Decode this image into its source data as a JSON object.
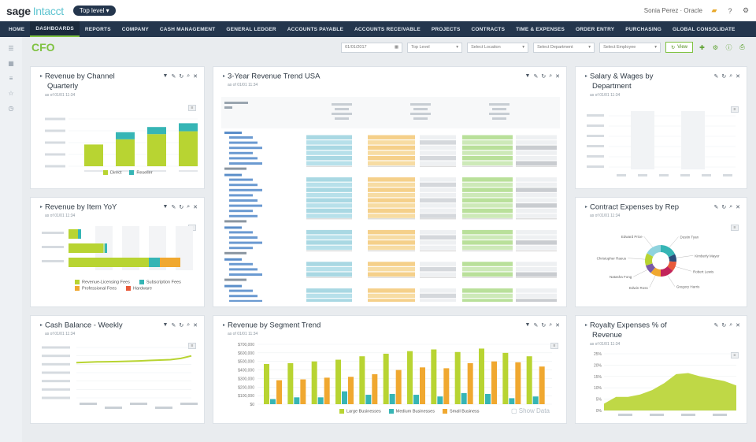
{
  "app": {
    "logo_sage": "sage",
    "logo_intacct": "Intacct",
    "company": "Top level ▾",
    "user": "Sonia Perez · Oracle",
    "icons": [
      "folder-icon",
      "help-icon",
      "settings-icon"
    ]
  },
  "nav": {
    "items": [
      "HOME",
      "DASHBOARDS",
      "REPORTS",
      "COMPANY",
      "CASH MANAGEMENT",
      "GENERAL LEDGER",
      "ACCOUNTS PAYABLE",
      "ACCOUNTS RECEIVABLE",
      "PROJECTS",
      "CONTRACTS",
      "TIME & EXPENSES",
      "ORDER ENTRY",
      "PURCHASING",
      "GLOBAL CONSOLIDATE"
    ],
    "active_index": 1
  },
  "header": {
    "title": "CFO",
    "filters": [
      "01/01/2017",
      "Top Level",
      "Select Location",
      "Select Department",
      "Select Employee"
    ],
    "view_button": "View"
  },
  "cards": {
    "rev_channel": {
      "title": "Revenue by Channel",
      "title2": "Quarterly",
      "subtitle": "as of 01/01 11:34"
    },
    "rev_trend": {
      "title": "3-Year Revenue Trend USA",
      "subtitle": "as of 01/01 11:34"
    },
    "salary": {
      "title": "Salary & Wages by",
      "title2": "Department",
      "subtitle": "as of 01/01 11:34"
    },
    "rev_item": {
      "title": "Revenue by Item YoY",
      "subtitle": "as of 01/01 11:34"
    },
    "contract_exp": {
      "title": "Contract Expenses by Rep",
      "subtitle": "as of 01/01 11:34"
    },
    "cash": {
      "title": "Cash Balance - Weekly",
      "subtitle": "as of 01/01 11:34"
    },
    "segment": {
      "title": "Revenue by Segment Trend",
      "subtitle": "as of 01/01 11:34",
      "show_data": "Show Data"
    },
    "royalty": {
      "title": "Royalty Expenses % of",
      "title2": "Revenue",
      "subtitle": "as of 01/01 11:34"
    }
  },
  "chart_colors": {
    "green": "#b8d432",
    "teal": "#36b5b5",
    "orange": "#f0a830",
    "lightblue": "#a9d8e3",
    "lightorange": "#f5d08a",
    "lightgreen": "#b9e09a"
  },
  "rev_channel_chart": {
    "type": "bar",
    "stacked": true,
    "legend": [
      "Direct",
      "Reseller"
    ],
    "series": [
      {
        "name": "Direct",
        "values": [
          230000,
          285000,
          340000,
          370000
        ]
      },
      {
        "name": "Reseller",
        "values": [
          0,
          75000,
          75000,
          85000
        ]
      }
    ]
  },
  "rev_item_chart": {
    "type": "bar",
    "horizontal": true,
    "legend": [
      "Revenue-Licensing Fees",
      "Subscription Fees",
      "Professional Fees",
      "Hardware"
    ]
  },
  "segment_chart": {
    "type": "bar",
    "legend": [
      "Large Businesses",
      "Medium Businesses",
      "Small Business"
    ],
    "y_ticks": [
      "$700,000",
      "$600,000",
      "$500,000",
      "$400,000",
      "$300,000",
      "$200,000",
      "$100,000",
      "$0"
    ],
    "series": [
      {
        "name": "Large Businesses",
        "values": [
          470000,
          480000,
          500000,
          520000,
          560000,
          590000,
          620000,
          640000,
          610000,
          650000,
          600000,
          560000
        ]
      },
      {
        "name": "Medium Businesses",
        "values": [
          60000,
          80000,
          80000,
          150000,
          110000,
          120000,
          110000,
          90000,
          130000,
          120000,
          70000,
          90000
        ]
      },
      {
        "name": "Small Business",
        "values": [
          280000,
          290000,
          310000,
          320000,
          350000,
          400000,
          430000,
          420000,
          480000,
          500000,
          490000,
          440000
        ]
      }
    ]
  },
  "cash_chart": {
    "type": "line",
    "y_ticks": [
      "$600,000.00",
      "$500,000.00",
      "$400,000.00",
      "$300,000.00",
      "$200,000.00",
      "$100,000.00",
      "$0.00"
    ],
    "values": [
      420000,
      425000,
      428000,
      430000,
      432000,
      436000,
      440000,
      445000,
      450000,
      455000,
      470000,
      500000
    ]
  },
  "royalty_chart": {
    "type": "area",
    "y_ticks": [
      "25%",
      "20%",
      "15%",
      "10%",
      "5%",
      "0%"
    ],
    "values": [
      3,
      6,
      6,
      7,
      9,
      12,
      16,
      16.5,
      15,
      14,
      13,
      11
    ]
  },
  "contract_chart": {
    "type": "pie",
    "labels": [
      "Dustin Tyan",
      "Kimberly Mayer",
      "Robert Lewis",
      "Gregory Harris",
      "Edwin Ross",
      "Natasha Fong",
      "Christopher Raeus",
      "Edward Price"
    ],
    "values": [
      18,
      8,
      10,
      14,
      11,
      9,
      13,
      17
    ]
  }
}
